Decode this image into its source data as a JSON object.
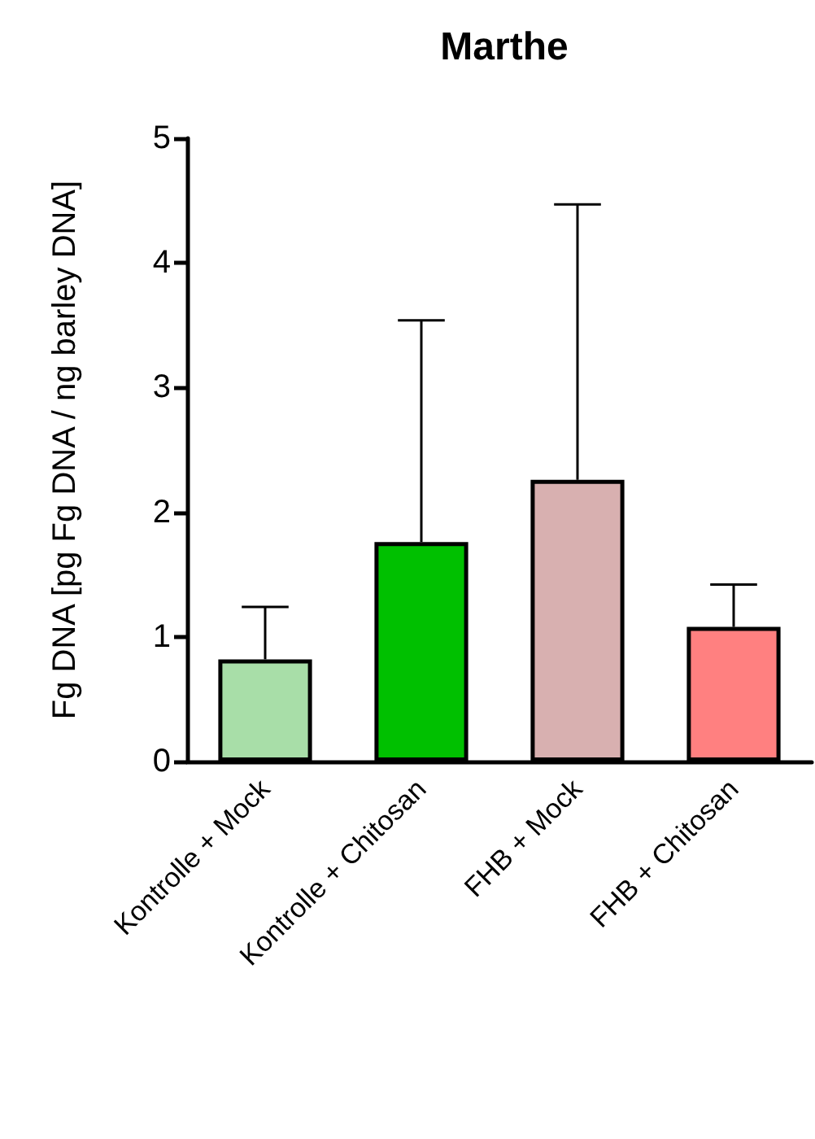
{
  "chart_data": {
    "type": "bar",
    "title": "Marthe",
    "ylabel": "Fg DNA [pg Fg DNA / ng barley DNA]",
    "categories": [
      "Kontrolle + Mock",
      "Kontrolle + Chitosan",
      "FHB + Mock",
      "FHB + Chitosan"
    ],
    "values": [
      0.82,
      1.76,
      2.26,
      1.08
    ],
    "colors": [
      "#a8dea8",
      "#00c000",
      "#d8b0b0",
      "#ff8080"
    ],
    "errors": [
      [
        0.82,
        1.24
      ],
      [
        1.76,
        3.54
      ],
      [
        2.26,
        4.47
      ],
      [
        1.08,
        1.42
      ]
    ],
    "ylim": [
      0,
      5
    ],
    "yticks": [
      0,
      1,
      2,
      3,
      4,
      5
    ]
  }
}
